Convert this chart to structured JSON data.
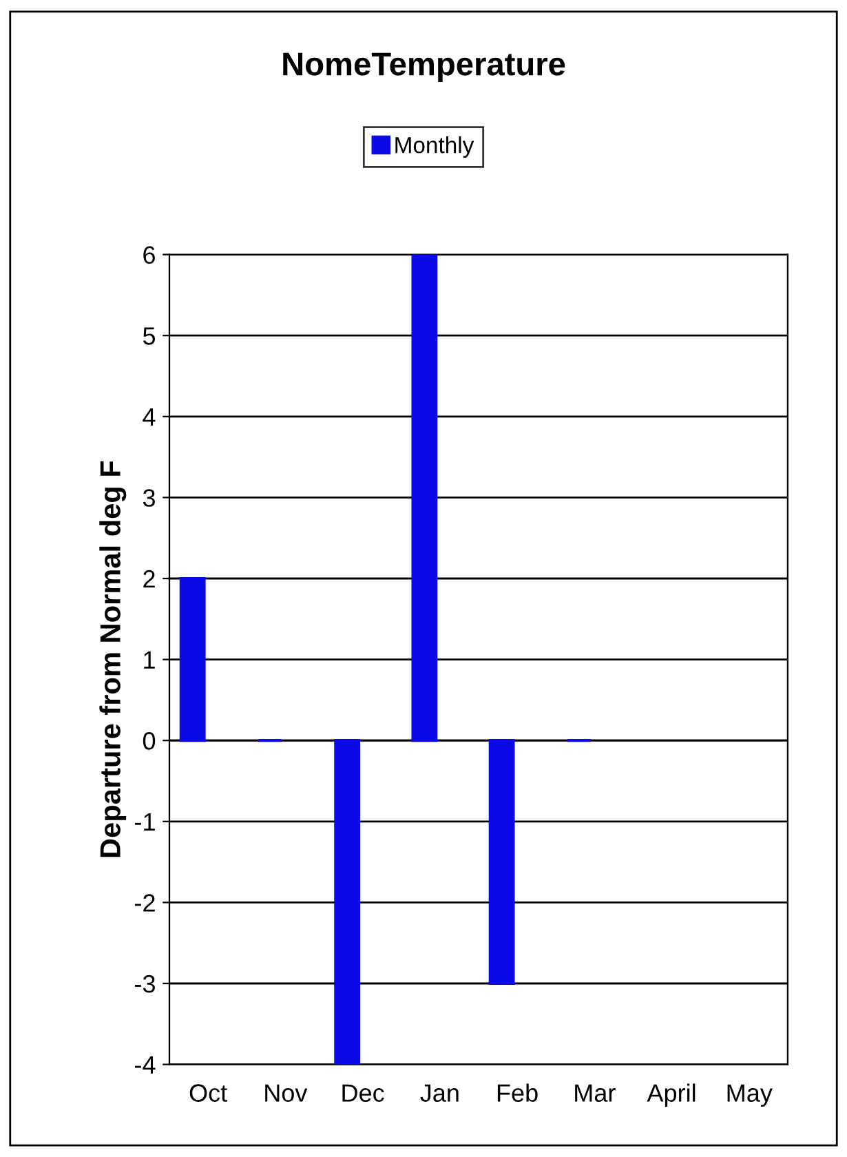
{
  "chart_data": {
    "type": "bar",
    "title": "NomeTemperature",
    "ylabel": "Departure from Normal deg F",
    "categories": [
      "Oct",
      "Nov",
      "Dec",
      "Jan",
      "Feb",
      "Mar",
      "April",
      "May"
    ],
    "series": [
      {
        "name": "Monthly",
        "color": "#0a0ae6",
        "values": [
          2,
          0,
          -4,
          6,
          -3,
          0,
          null,
          null
        ]
      }
    ],
    "ylim": [
      -4,
      6
    ],
    "yticks": [
      -4,
      -3,
      -2,
      -1,
      0,
      1,
      2,
      3,
      4,
      5,
      6
    ],
    "grid": "y",
    "legend": "top"
  }
}
